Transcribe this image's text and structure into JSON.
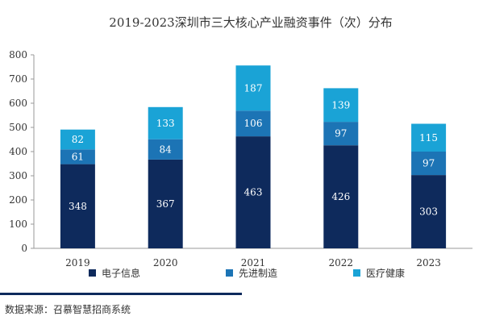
{
  "chart_data": {
    "type": "bar",
    "stacked": true,
    "title": "2019-2023深圳市三大核心产业融资事件（次）分布",
    "categories": [
      "2019",
      "2020",
      "2021",
      "2022",
      "2023"
    ],
    "series": [
      {
        "name": "电子信息",
        "values": [
          348,
          367,
          463,
          426,
          303
        ],
        "color": "#0e2a5c"
      },
      {
        "name": "先进制造",
        "values": [
          61,
          84,
          106,
          97,
          97
        ],
        "color": "#1c74b5"
      },
      {
        "name": "医疗健康",
        "values": [
          82,
          133,
          187,
          139,
          115
        ],
        "color": "#1aa3d6"
      }
    ],
    "ylim": [
      0,
      800
    ],
    "yticks": [
      0,
      100,
      200,
      300,
      400,
      500,
      600,
      700,
      800
    ],
    "grid": false,
    "legend_position": "bottom"
  },
  "source": "数据来源：召慕智慧招商系统",
  "colors": {
    "label_dark_bg": "#ffffff",
    "accent_line": "#0e2a5c"
  }
}
